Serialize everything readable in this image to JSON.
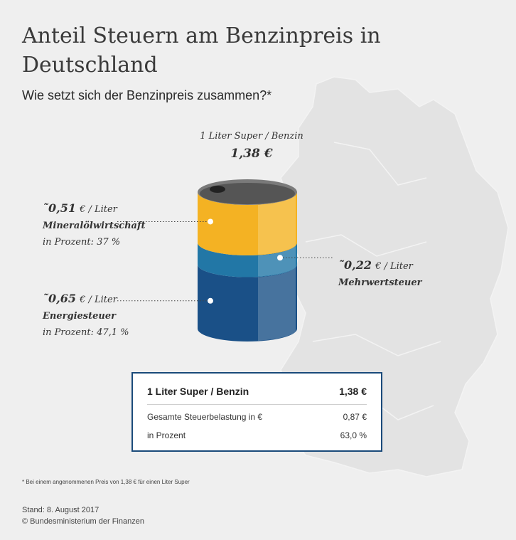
{
  "title": "Anteil Steuern am Benzinpreis in Deutschland",
  "subtitle": "Wie setzt sich der Benzinpreis zusammen?*",
  "chart_data": {
    "type": "bar",
    "title": "Anteil Steuern am Benzinpreis in Deutschland",
    "subtitle": "Wie setzt sich der Benzinpreis zusammen?*",
    "total_label": "1 Liter Super / Benzin",
    "total_value": "1,38 €",
    "total": 1.38,
    "series": [
      {
        "name": "Mineralölwirtschaft",
        "value": 0.51,
        "value_label": "˜0,51",
        "unit": "€ / Liter",
        "percent_label": "in Prozent: 37 %",
        "color": "#f4b223"
      },
      {
        "name": "Mehrwertsteuer",
        "value": 0.22,
        "value_label": "˜0,22",
        "unit": "€ / Liter",
        "percent_label": "",
        "color": "#2277a6"
      },
      {
        "name": "Energiesteuer",
        "value": 0.65,
        "value_label": "˜0,65",
        "unit": "€ / Liter",
        "percent_label": "in Prozent: 47,1 %",
        "color": "#1a5087"
      }
    ]
  },
  "summary": {
    "header_label": "1 Liter Super / Benzin",
    "header_value": "1,38 €",
    "rows": [
      {
        "label": "Gesamte Steuerbelastung in €",
        "value": "0,87 €"
      },
      {
        "label": "in Prozent",
        "value": "63,0 %"
      }
    ]
  },
  "footnote": "* Bei einem angenommenen Preis von 1,38 € für einen Liter Super",
  "stand": "Stand: 8. August 2017",
  "copyright": "© Bundesministerium der Finanzen",
  "colors": {
    "background": "#efefef",
    "map": "#e2e2e2",
    "box_border": "#1a4a7a"
  }
}
